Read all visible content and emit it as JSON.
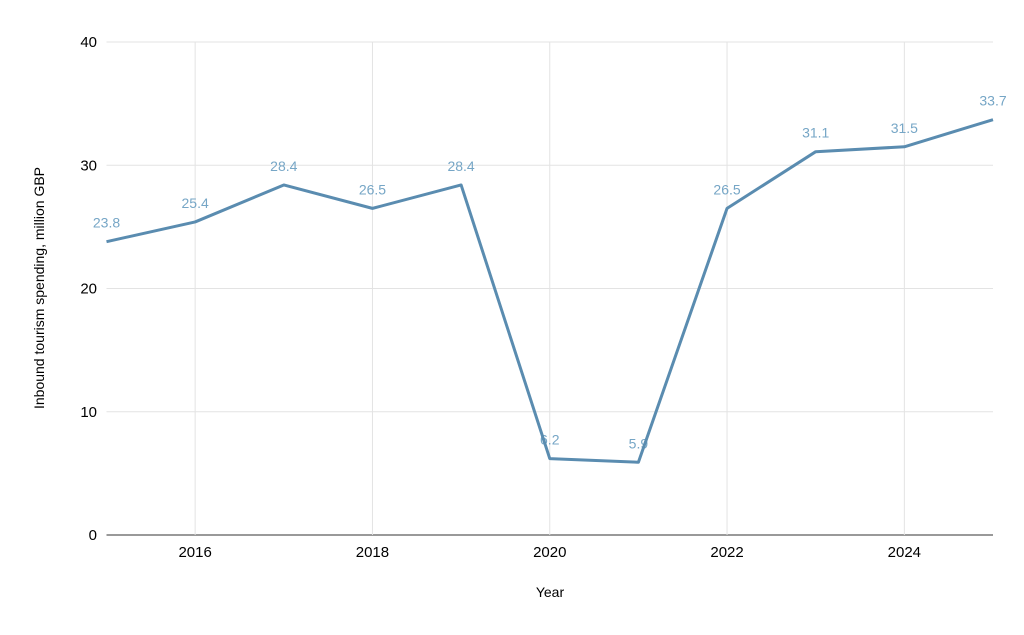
{
  "chart_data": {
    "type": "line",
    "x": [
      2015,
      2016,
      2017,
      2018,
      2019,
      2020,
      2021,
      2022,
      2023,
      2024,
      2025
    ],
    "values": [
      23.8,
      25.4,
      28.4,
      26.5,
      28.4,
      6.2,
      5.9,
      26.5,
      31.1,
      31.5,
      33.7
    ],
    "point_labels": [
      "23.8",
      "25.4",
      "28.4",
      "26.5",
      "28.4",
      "6.2",
      "5.9",
      "26.5",
      "31.1",
      "31.5",
      "33.7"
    ],
    "xlabel": "Year",
    "ylabel": "Inbound tourism spending, million GBP",
    "xlim": [
      2015,
      2025
    ],
    "ylim": [
      0,
      40
    ],
    "x_ticks": [
      "2016",
      "2018",
      "2020",
      "2022",
      "2024"
    ],
    "x_tick_values": [
      2016,
      2018,
      2020,
      2022,
      2024
    ],
    "y_ticks": [
      "0",
      "10",
      "20",
      "30",
      "40"
    ],
    "y_tick_values": [
      0,
      10,
      20,
      30,
      40
    ],
    "grid": true,
    "legend_position": "none",
    "colors": {
      "line": "#5a8cb0",
      "point_label": "#76a6c6",
      "grid": "#e3e3e3",
      "axis": "#333333",
      "tick_text": "#000000"
    }
  }
}
